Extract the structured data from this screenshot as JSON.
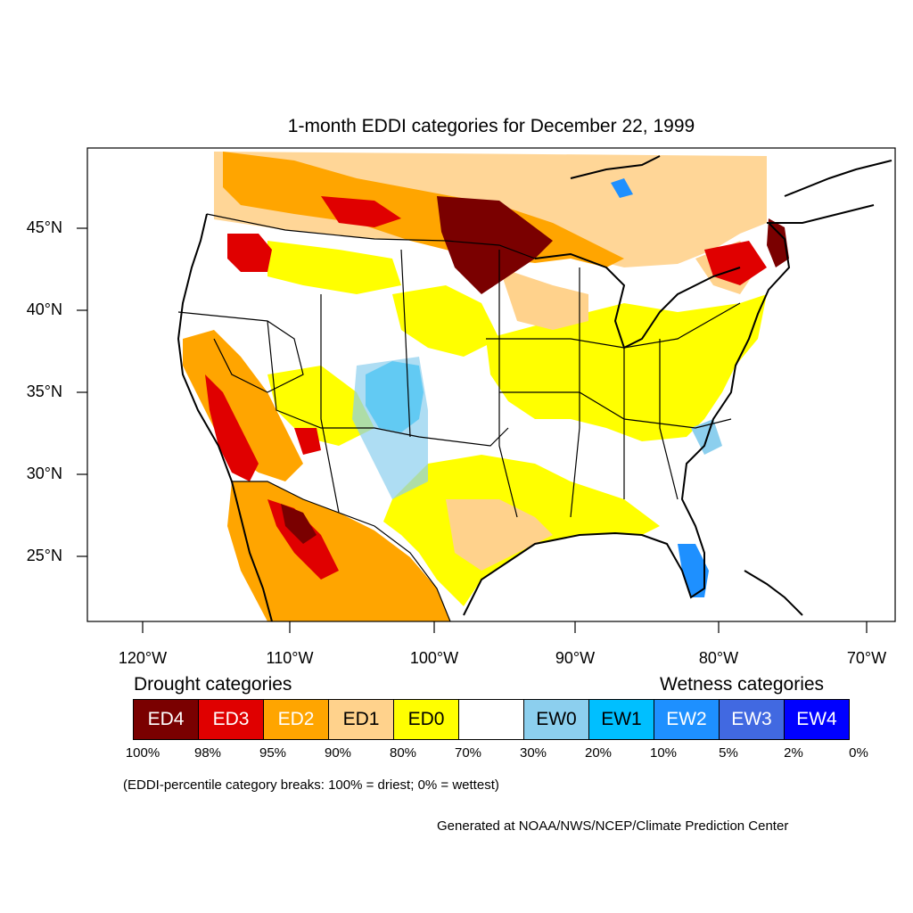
{
  "title": "1-month EDDI categories for December 22, 1999",
  "axes": {
    "lat_labels": [
      "45°N",
      "40°N",
      "35°N",
      "30°N",
      "25°N"
    ],
    "lon_labels": [
      "120°W",
      "110°W",
      "100°W",
      "90°W",
      "80°W",
      "70°W"
    ]
  },
  "legend": {
    "drought_title": "Drought categories",
    "wetness_title": "Wetness categories",
    "categories": [
      {
        "label": "ED4",
        "color": "#7a0000",
        "text_color": "#ffffff"
      },
      {
        "label": "ED3",
        "color": "#e00000",
        "text_color": "#ffffff"
      },
      {
        "label": "ED2",
        "color": "#ffa500",
        "text_color": "#ffffff"
      },
      {
        "label": "ED1",
        "color": "#ffd28c",
        "text_color": "#000000"
      },
      {
        "label": "ED0",
        "color": "#ffff00",
        "text_color": "#000000"
      },
      {
        "label": "",
        "color": "#ffffff",
        "text_color": "#000000"
      },
      {
        "label": "EW0",
        "color": "#8ccfee",
        "text_color": "#000000"
      },
      {
        "label": "EW1",
        "color": "#00bfff",
        "text_color": "#000000"
      },
      {
        "label": "EW2",
        "color": "#1e90ff",
        "text_color": "#ffffff"
      },
      {
        "label": "EW3",
        "color": "#4169e1",
        "text_color": "#ffffff"
      },
      {
        "label": "EW4",
        "color": "#0000ff",
        "text_color": "#ffffff"
      }
    ],
    "percentiles": [
      "100%",
      "98%",
      "95%",
      "90%",
      "80%",
      "70%",
      "30%",
      "20%",
      "10%",
      "5%",
      "2%",
      "0%"
    ]
  },
  "note": "(EDDI-percentile category breaks: 100% = driest; 0% = wettest)",
  "credit": "Generated at NOAA/NWS/NCEP/Climate Prediction Center"
}
